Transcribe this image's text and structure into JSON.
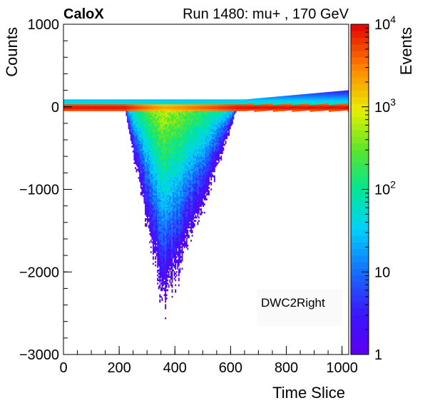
{
  "header": {
    "brand": "CaloX",
    "run_title": "Run 1480: mu+ , 170 GeV"
  },
  "chart_data": {
    "type": "heatmap",
    "title": "Run 1480: mu+ , 170 GeV",
    "xlabel": "Time Slice",
    "ylabel": "Counts",
    "zlabel": "Events",
    "xlim": [
      0,
      1024
    ],
    "ylim": [
      -3000,
      1000
    ],
    "zlim": [
      1,
      10000
    ],
    "zscale": "log",
    "legend_text": "DWC2Right",
    "x_ticks": [
      "0",
      "200",
      "400",
      "600",
      "800",
      "1000"
    ],
    "x_tick_values": [
      0,
      200,
      400,
      600,
      800,
      1000
    ],
    "y_ticks": [
      "1000",
      "0",
      "−1000",
      "−2000",
      "−3000"
    ],
    "y_tick_values": [
      1000,
      0,
      -1000,
      -2000,
      -3000
    ],
    "z_tick_values": [
      1,
      10,
      100,
      1000,
      10000
    ],
    "z_ticks": [
      {
        "base": "1",
        "exp": ""
      },
      {
        "base": "10",
        "exp": ""
      },
      {
        "base": "10",
        "exp": "2"
      },
      {
        "base": "10",
        "exp": "3"
      },
      {
        "base": "10",
        "exp": "4"
      }
    ],
    "baseline_counts": 0,
    "pulse": {
      "start_slice": 220,
      "peak_slice": 360,
      "end_slice": 620,
      "min_counts": -2680
    }
  }
}
